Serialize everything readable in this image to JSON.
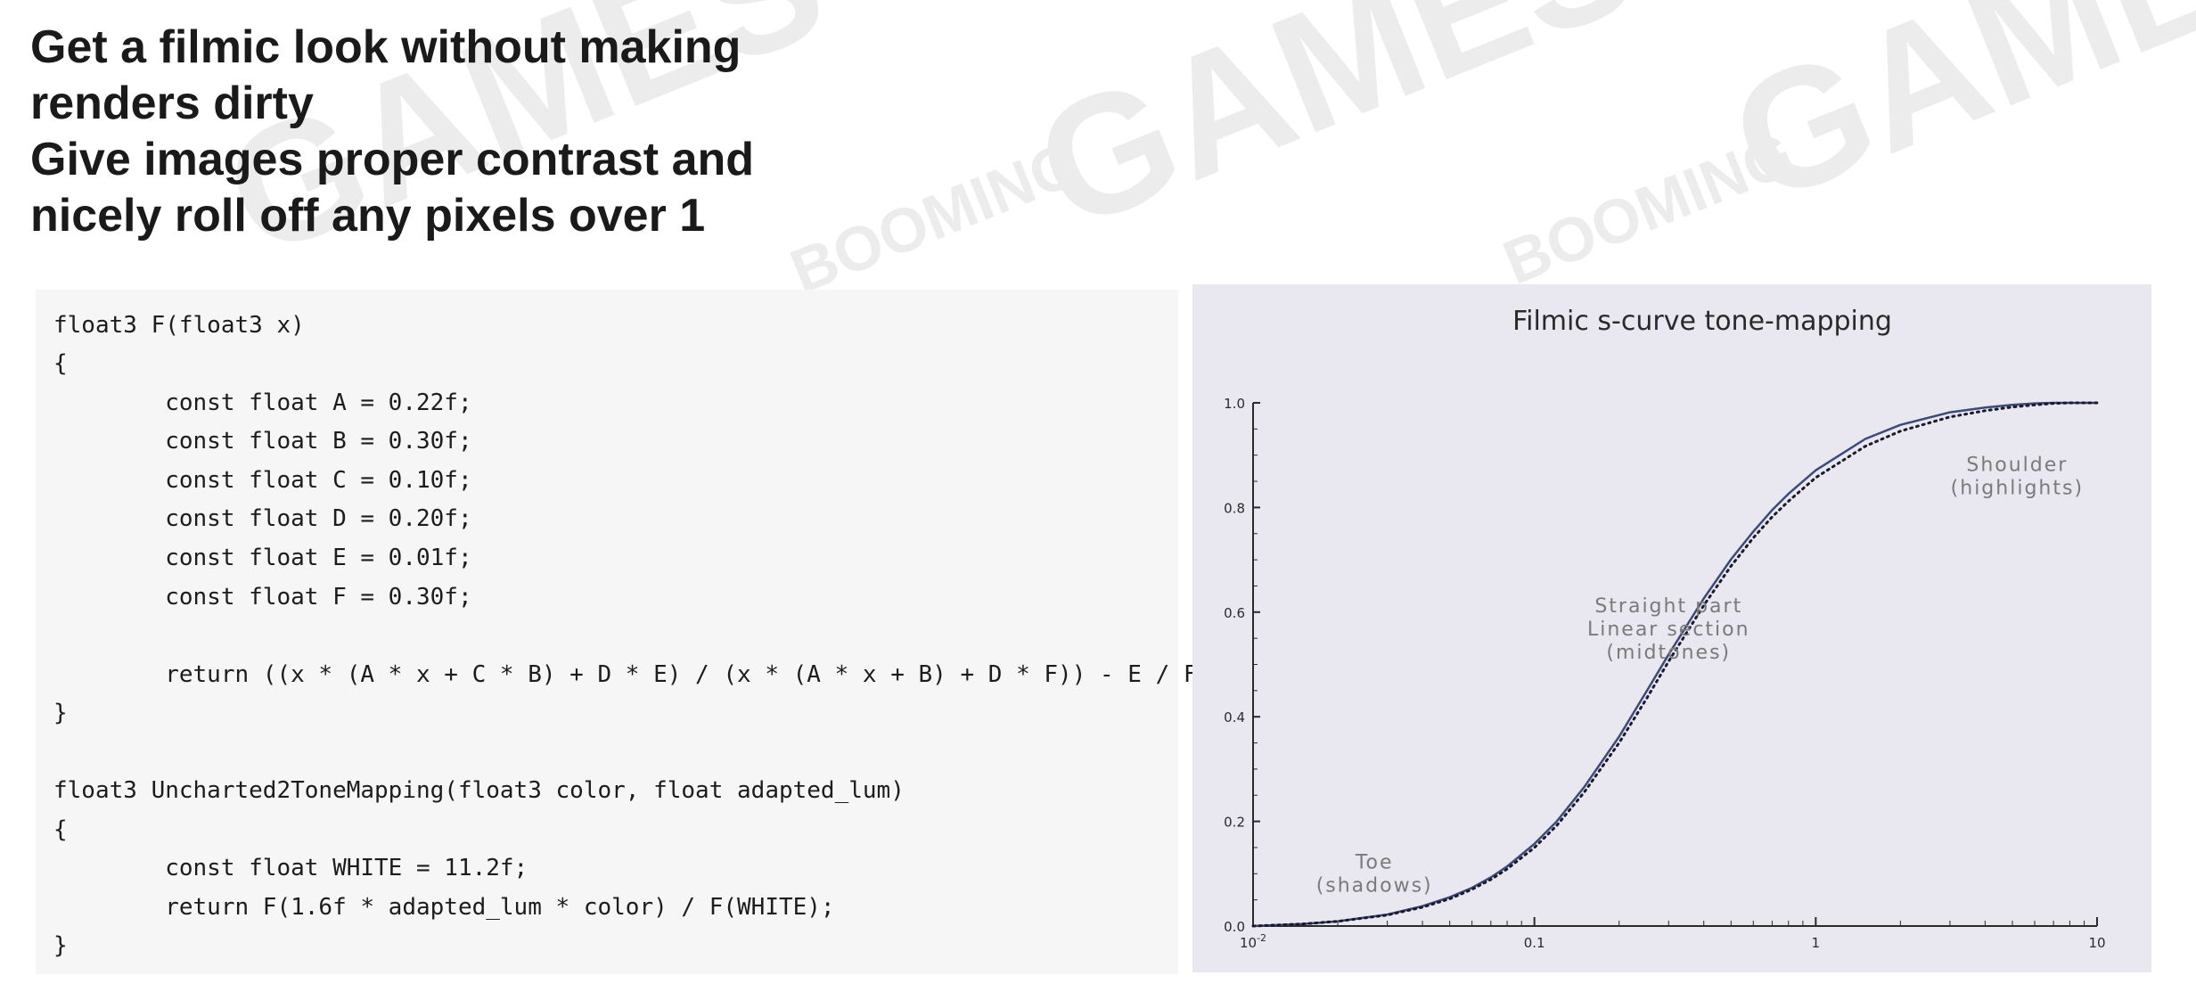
{
  "headline": {
    "lines": [
      "Get a filmic look without making",
      "renders dirty",
      "Give images proper contrast and",
      "nicely roll off any pixels over 1"
    ]
  },
  "code": {
    "lines": [
      "float3 F(float3 x)",
      "{",
      "        const float A = 0.22f;",
      "        const float B = 0.30f;",
      "        const float C = 0.10f;",
      "        const float D = 0.20f;",
      "        const float E = 0.01f;",
      "        const float F = 0.30f;",
      "",
      "        return ((x * (A * x + C * B) + D * E) / (x * (A * x + B) + D * F)) - E / F;",
      "}",
      "",
      "float3 Uncharted2ToneMapping(float3 color, float adapted_lum)",
      "{",
      "        const float WHITE = 11.2f;",
      "        return F(1.6f * adapted_lum * color) / F(WHITE);",
      "}"
    ]
  },
  "watermark": {
    "text": "GAMES",
    "subtext": "BOOMING",
    "color": "#ececec"
  },
  "chart_data": {
    "type": "line",
    "title": "Filmic s-curve tone-mapping",
    "xscale": "log",
    "xlim": [
      0.01,
      10
    ],
    "ylim": [
      0.0,
      1.0
    ],
    "x_ticks": [
      {
        "value": 0.01,
        "label": "10",
        "sup": "-2"
      },
      {
        "value": 0.1,
        "label": "0.1",
        "sup": ""
      },
      {
        "value": 1,
        "label": "1",
        "sup": ""
      },
      {
        "value": 10,
        "label": "10",
        "sup": ""
      }
    ],
    "y_ticks": [
      {
        "value": 0.0,
        "label": "0.0"
      },
      {
        "value": 0.2,
        "label": "0.2"
      },
      {
        "value": 0.4,
        "label": "0.4"
      },
      {
        "value": 0.6,
        "label": "0.6"
      },
      {
        "value": 0.8,
        "label": "0.8"
      },
      {
        "value": 1.0,
        "label": "1.0"
      }
    ],
    "series": [
      {
        "style": "solid",
        "color": "#3c4a7a",
        "x": [
          0.01,
          0.015,
          0.02,
          0.03,
          0.04,
          0.05,
          0.06,
          0.07,
          0.08,
          0.1,
          0.12,
          0.15,
          0.2,
          0.25,
          0.3,
          0.4,
          0.5,
          0.6,
          0.7,
          0.8,
          1.0,
          1.5,
          2.0,
          3.0,
          4.0,
          5.0,
          6.0,
          7.0,
          8.0,
          10.0
        ],
        "y": [
          0.0,
          0.004,
          0.009,
          0.022,
          0.038,
          0.055,
          0.073,
          0.093,
          0.114,
          0.157,
          0.2,
          0.265,
          0.362,
          0.448,
          0.519,
          0.626,
          0.701,
          0.754,
          0.795,
          0.826,
          0.871,
          0.931,
          0.958,
          0.982,
          0.991,
          0.996,
          0.999,
          1.0,
          1.0,
          1.0
        ]
      },
      {
        "style": "dotted",
        "color": "#1a1a2a",
        "x": [
          0.01,
          0.015,
          0.02,
          0.03,
          0.04,
          0.05,
          0.06,
          0.07,
          0.08,
          0.1,
          0.12,
          0.15,
          0.2,
          0.25,
          0.3,
          0.4,
          0.5,
          0.6,
          0.7,
          0.8,
          1.0,
          1.5,
          2.0,
          3.0,
          4.0,
          5.0,
          6.0,
          7.0,
          8.0,
          10.0
        ],
        "y": [
          0.0,
          0.004,
          0.009,
          0.021,
          0.036,
          0.052,
          0.07,
          0.089,
          0.109,
          0.15,
          0.192,
          0.255,
          0.35,
          0.434,
          0.506,
          0.613,
          0.688,
          0.742,
          0.782,
          0.812,
          0.857,
          0.917,
          0.946,
          0.973,
          0.985,
          0.992,
          0.996,
          0.999,
          1.0,
          1.0
        ]
      }
    ],
    "annotations": [
      {
        "lines": [
          "Shoulder",
          "(highlights)"
        ],
        "x": 5.2,
        "y": 0.87
      },
      {
        "lines": [
          "Straight part",
          "Linear section",
          "(midtones)"
        ],
        "x": 0.3,
        "y": 0.6
      },
      {
        "lines": [
          "Toe",
          "(shadows)"
        ],
        "x": 0.027,
        "y": 0.11
      }
    ]
  }
}
